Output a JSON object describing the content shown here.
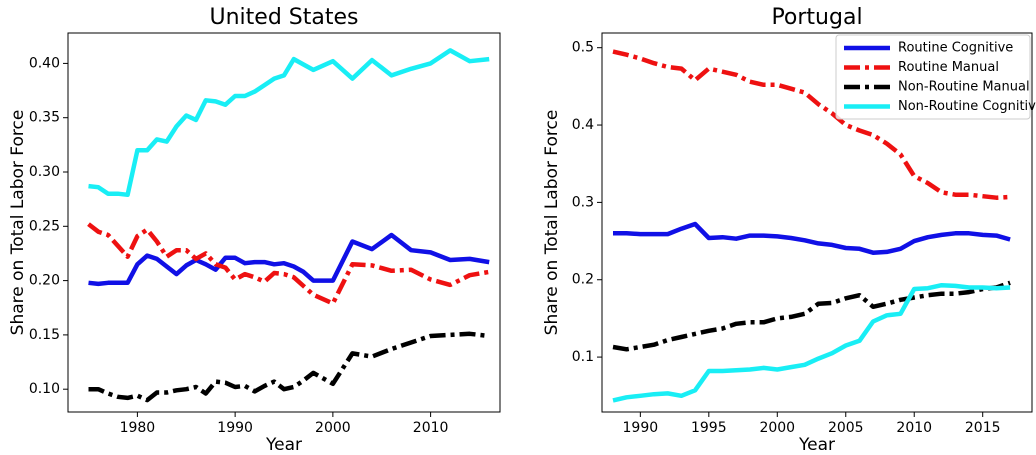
{
  "chart_data": [
    {
      "type": "line",
      "title": "United States",
      "xlabel": "Year",
      "ylabel": "Share on Total Labor Force",
      "x": [
        1975,
        1976,
        1977,
        1978,
        1979,
        1980,
        1981,
        1982,
        1983,
        1984,
        1985,
        1986,
        1987,
        1988,
        1989,
        1990,
        1991,
        1992,
        1993,
        1994,
        1995,
        1996,
        1997,
        1998,
        2000,
        2002,
        2004,
        2006,
        2008,
        2010,
        2012,
        2014,
        2016
      ],
      "xlim": [
        1972.9,
        2017.1
      ],
      "xticks": [
        1980,
        1990,
        2000,
        2010
      ],
      "ylim": [
        0.079,
        0.428
      ],
      "yticks": [
        {
          "value": 0.1,
          "label": "0.10"
        },
        0.15,
        {
          "value": 0.2,
          "label": "0.20"
        },
        0.25,
        {
          "value": 0.3,
          "label": "0.30"
        },
        0.35,
        {
          "value": 0.4,
          "label": "0.40"
        }
      ],
      "series": [
        {
          "color": "#1010e6",
          "style": "solid",
          "values": [
            0.198,
            0.197,
            0.198,
            0.198,
            0.198,
            0.215,
            0.223,
            0.22,
            0.213,
            0.206,
            0.214,
            0.219,
            0.215,
            0.21,
            0.221,
            0.221,
            0.216,
            0.217,
            0.217,
            0.215,
            0.216,
            0.213,
            0.208,
            0.2,
            0.2,
            0.236,
            0.229,
            0.242,
            0.228,
            0.226,
            0.219,
            0.22,
            0.217
          ]
        },
        {
          "color": "#ee1111",
          "style": "dashdot",
          "values": [
            0.252,
            0.245,
            0.242,
            0.232,
            0.222,
            0.241,
            0.247,
            0.236,
            0.222,
            0.228,
            0.228,
            0.22,
            0.225,
            0.215,
            0.212,
            0.201,
            0.206,
            0.203,
            0.199,
            0.207,
            0.206,
            0.203,
            0.195,
            0.187,
            0.179,
            0.215,
            0.214,
            0.209,
            0.21,
            0.201,
            0.196,
            0.205,
            0.208
          ]
        },
        {
          "color": "#000000",
          "style": "dashdot",
          "values": [
            0.1,
            0.1,
            0.096,
            0.093,
            0.092,
            0.094,
            0.09,
            0.097,
            0.097,
            0.099,
            0.1,
            0.102,
            0.096,
            0.107,
            0.106,
            0.102,
            0.103,
            0.098,
            0.103,
            0.107,
            0.1,
            0.102,
            0.108,
            0.115,
            0.105,
            0.133,
            0.13,
            0.137,
            0.143,
            0.149,
            0.15,
            0.151,
            0.149
          ]
        },
        {
          "color": "#19eef5",
          "style": "solid",
          "values": [
            0.287,
            0.286,
            0.28,
            0.28,
            0.279,
            0.32,
            0.32,
            0.33,
            0.328,
            0.342,
            0.352,
            0.348,
            0.366,
            0.365,
            0.362,
            0.37,
            0.37,
            0.374,
            0.38,
            0.386,
            0.389,
            0.404,
            0.399,
            0.394,
            0.402,
            0.386,
            0.403,
            0.389,
            0.395,
            0.4,
            0.412,
            0.402,
            0.404
          ]
        }
      ]
    },
    {
      "type": "line",
      "title": "Portugal",
      "xlabel": "Year",
      "ylabel": "Share on Total Labor Force",
      "legend": "upper right",
      "x": [
        1988,
        1989,
        1990,
        1991,
        1992,
        1993,
        1994,
        1995,
        1996,
        1997,
        1998,
        1999,
        2000,
        2001,
        2002,
        2003,
        2004,
        2005,
        2006,
        2007,
        2008,
        2009,
        2010,
        2011,
        2012,
        2013,
        2014,
        2015,
        2016,
        2017
      ],
      "xlim": [
        1987.2,
        2018.6
      ],
      "xticks": [
        1990,
        1995,
        2000,
        2005,
        2010,
        2015
      ],
      "ylim": [
        0.029,
        0.519
      ],
      "yticks": [
        0.1,
        0.2,
        0.3,
        0.4,
        0.5
      ],
      "series": [
        {
          "name": "Routine Cognitive",
          "color": "#1010e6",
          "style": "solid",
          "values": [
            0.26,
            0.26,
            0.259,
            0.259,
            0.259,
            0.266,
            0.272,
            0.254,
            0.255,
            0.253,
            0.257,
            0.257,
            0.256,
            0.254,
            0.251,
            0.247,
            0.245,
            0.241,
            0.24,
            0.235,
            0.236,
            0.24,
            0.25,
            0.255,
            0.258,
            0.26,
            0.26,
            0.258,
            0.257,
            0.252
          ]
        },
        {
          "name": "Routine Manual",
          "color": "#ee1111",
          "style": "dashdot",
          "values": [
            0.495,
            0.491,
            0.486,
            0.48,
            0.475,
            0.473,
            0.458,
            0.473,
            0.469,
            0.465,
            0.456,
            0.452,
            0.452,
            0.447,
            0.442,
            0.427,
            0.415,
            0.4,
            0.393,
            0.387,
            0.376,
            0.362,
            0.334,
            0.325,
            0.313,
            0.31,
            0.31,
            0.308,
            0.306,
            0.307
          ]
        },
        {
          "name": "Non-Routine Manual",
          "color": "#000000",
          "style": "dashdot",
          "values": [
            0.113,
            0.11,
            0.113,
            0.116,
            0.122,
            0.126,
            0.13,
            0.134,
            0.137,
            0.143,
            0.145,
            0.145,
            0.15,
            0.152,
            0.156,
            0.169,
            0.17,
            0.176,
            0.18,
            0.165,
            0.169,
            0.174,
            0.177,
            0.18,
            0.182,
            0.182,
            0.184,
            0.188,
            0.19,
            0.196
          ]
        },
        {
          "name": "Non-Routine Cognitive",
          "color": "#19eef5",
          "style": "solid",
          "values": [
            0.044,
            0.048,
            0.05,
            0.052,
            0.053,
            0.05,
            0.057,
            0.082,
            0.082,
            0.083,
            0.084,
            0.086,
            0.084,
            0.087,
            0.09,
            0.098,
            0.105,
            0.115,
            0.121,
            0.146,
            0.154,
            0.156,
            0.188,
            0.189,
            0.193,
            0.192,
            0.19,
            0.19,
            0.189,
            0.19
          ]
        }
      ]
    }
  ]
}
